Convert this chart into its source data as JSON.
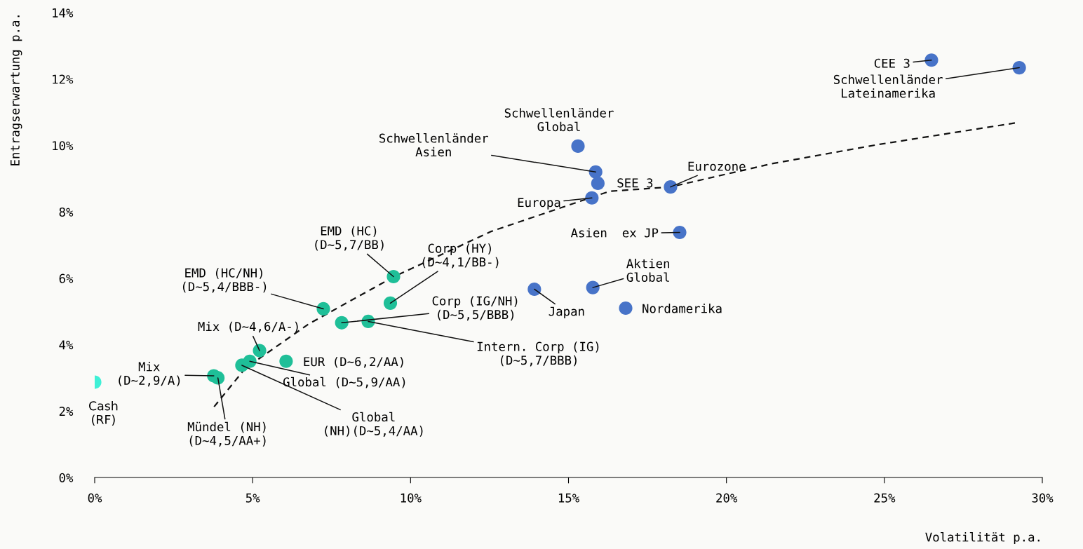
{
  "chart_data": {
    "type": "scatter",
    "xlabel": "Volatilität p.a.",
    "ylabel": "Entragserwartung p.a.",
    "xlim": [
      0,
      30
    ],
    "ylim": [
      0,
      14
    ],
    "xticks": [
      {
        "value": 0,
        "label": "0%"
      },
      {
        "value": 5,
        "label": "5%"
      },
      {
        "value": 10,
        "label": "10%"
      },
      {
        "value": 15,
        "label": "15%"
      },
      {
        "value": 20,
        "label": "20%"
      },
      {
        "value": 25,
        "label": "25%"
      },
      {
        "value": 30,
        "label": "30%"
      }
    ],
    "yticks": [
      {
        "value": 0,
        "label": "0%"
      },
      {
        "value": 2,
        "label": "2%"
      },
      {
        "value": 4,
        "label": "4%"
      },
      {
        "value": 6,
        "label": "6%"
      },
      {
        "value": 8,
        "label": "8%"
      },
      {
        "value": 10,
        "label": "10%"
      },
      {
        "value": 12,
        "label": "12%"
      },
      {
        "value": 14,
        "label": "14%"
      }
    ],
    "grid": false,
    "legend": false,
    "series": [
      {
        "color": "#3ff0d6",
        "marker": "circle",
        "x": [
          0
        ],
        "values": [
          2.87
        ]
      },
      {
        "color": "#1fbf98",
        "marker": "circle",
        "x": [
          3.77,
          3.9,
          4.66,
          4.91,
          5.22,
          6.06,
          7.24,
          7.82,
          8.66,
          9.36,
          9.46
        ],
        "values": [
          3.06,
          3.0,
          3.38,
          3.5,
          3.82,
          3.5,
          5.08,
          4.66,
          4.7,
          5.25,
          6.05
        ]
      },
      {
        "color": "#4773c8",
        "marker": "circle",
        "x": [
          15.3,
          15.86,
          15.93,
          18.23,
          15.74,
          18.52,
          15.77,
          13.92,
          16.81,
          26.49,
          29.27
        ],
        "values": [
          9.98,
          9.2,
          8.86,
          8.75,
          8.42,
          7.38,
          5.72,
          5.67,
          5.1,
          12.57,
          12.34
        ]
      },
      {
        "type": "line",
        "color": "#111111",
        "marker": "none",
        "line_style": "dashed",
        "x": [
          3.78,
          4.77,
          6.77,
          9.44,
          12.55,
          16.3,
          18.23,
          21.43,
          24.76,
          29.16
        ],
        "values": [
          2.13,
          3.29,
          4.62,
          6.03,
          7.41,
          8.62,
          8.75,
          9.45,
          10.02,
          10.68
        ]
      }
    ],
    "annotations": [
      {
        "text": "Cash\n(RF)",
        "x": 0,
        "y": 2.87
      },
      {
        "text": "Mix\n(D~2,9/A)",
        "x": 3.77,
        "y": 3.06
      },
      {
        "text": "Mündel (NH)\n(D~4,5/AA+)",
        "x": 3.9,
        "y": 3.0
      },
      {
        "text": "Global\n(NH)(D~5,4/AA)",
        "x": 4.66,
        "y": 3.38
      },
      {
        "text": "Global (D~5,9/AA)",
        "x": 4.91,
        "y": 3.5
      },
      {
        "text": "Mix (D~4,6/A-)",
        "x": 5.22,
        "y": 3.82
      },
      {
        "text": "EUR (D~6,2/AA)",
        "x": 6.06,
        "y": 3.5
      },
      {
        "text": "EMD (HC/NH)\n(D~5,4/BBB-)",
        "x": 7.24,
        "y": 5.08
      },
      {
        "text": "Corp (IG/NH)\n(D~5,5/BBB)",
        "x": 7.82,
        "y": 4.66
      },
      {
        "text": "Intern. Corp (IG)\n(D~5,7/BBB)",
        "x": 8.66,
        "y": 4.7
      },
      {
        "text": "Corp (HY)\n(D~4,1/BB-)",
        "x": 9.36,
        "y": 5.25
      },
      {
        "text": "EMD (HC)\n(D~5,7/BB)",
        "x": 9.46,
        "y": 6.05
      },
      {
        "text": "Schwellenländer\nGlobal",
        "x": 15.3,
        "y": 9.98
      },
      {
        "text": "Schwellenländer\nAsien",
        "x": 15.86,
        "y": 9.2
      },
      {
        "text": "SEE 3",
        "x": 15.93,
        "y": 8.86
      },
      {
        "text": "Eurozone",
        "x": 18.23,
        "y": 8.75
      },
      {
        "text": "Europa",
        "x": 15.74,
        "y": 8.42
      },
      {
        "text": "Asien  ex JP",
        "x": 18.52,
        "y": 7.38
      },
      {
        "text": "Aktien\nGlobal",
        "x": 15.77,
        "y": 5.72
      },
      {
        "text": "Japan",
        "x": 13.92,
        "y": 5.67
      },
      {
        "text": "Nordamerika",
        "x": 16.81,
        "y": 5.1
      },
      {
        "text": "CEE 3",
        "x": 26.49,
        "y": 12.57
      },
      {
        "text": "Schwellenländer\nLateinamerika",
        "x": 29.27,
        "y": 12.34
      }
    ]
  }
}
